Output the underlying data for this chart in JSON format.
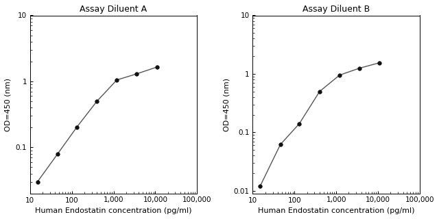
{
  "title_A": "Assay Diluent A",
  "title_B": "Assay Diluent B",
  "xlabel": "Human Endostatin concentration (pg/ml)",
  "ylabel": "OD=450 (nm)",
  "x_data_A": [
    15,
    46,
    130,
    400,
    1200,
    3600,
    11000
  ],
  "y_data_A": [
    0.03,
    0.08,
    0.2,
    0.5,
    1.05,
    1.3,
    1.65
  ],
  "x_data_B": [
    15,
    46,
    130,
    400,
    1200,
    3600,
    11000
  ],
  "y_data_B": [
    0.012,
    0.062,
    0.14,
    0.5,
    0.95,
    1.25,
    1.55
  ],
  "xlim": [
    10,
    100000
  ],
  "ylim_A": [
    0.02,
    10
  ],
  "ylim_B": [
    0.009,
    10
  ],
  "xticks": [
    10,
    100,
    1000,
    10000,
    100000
  ],
  "xtick_labels": [
    "10",
    "100",
    "1,000",
    "10,000",
    "100,000"
  ],
  "line_color": "#555555",
  "marker_color": "#111111",
  "title_color": "#000000",
  "label_color": "#000000",
  "title_fontsize": 9,
  "label_fontsize": 8,
  "tick_fontsize": 7.5
}
